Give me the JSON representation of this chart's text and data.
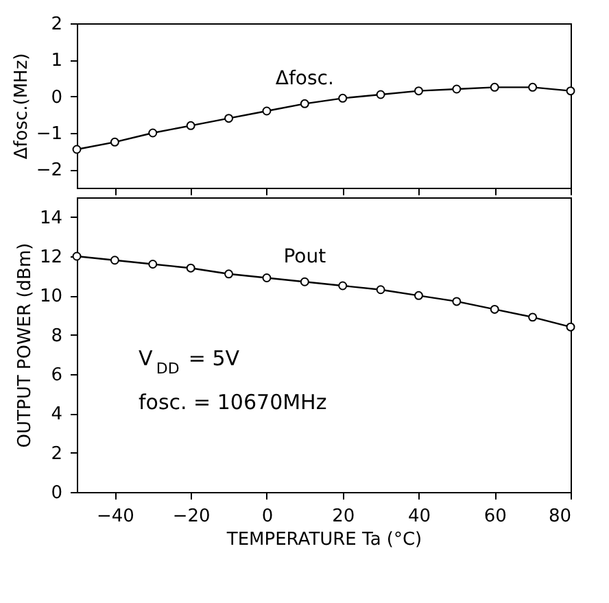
{
  "chart_data": [
    {
      "type": "line",
      "ylabel": "Δfosc.(MHz)",
      "x": [
        -50,
        -40,
        -30,
        -20,
        -10,
        0,
        10,
        20,
        30,
        40,
        50,
        60,
        70,
        80
      ],
      "xlim": [
        -50,
        80
      ],
      "xticks": [
        -40,
        -20,
        0,
        20,
        40,
        60,
        80
      ],
      "ylim": [
        -2.5,
        2
      ],
      "yticks": [
        -2,
        -1,
        0,
        1,
        2
      ],
      "tick_labels": "y",
      "marker": "circle",
      "line_style": "solid",
      "series": [
        {
          "name": "Δfosc.",
          "color": "#000000",
          "values": [
            -1.45,
            -1.25,
            -1.0,
            -0.8,
            -0.6,
            -0.4,
            -0.2,
            -0.05,
            0.05,
            0.15,
            0.2,
            0.25,
            0.25,
            0.15
          ]
        }
      ]
    },
    {
      "type": "line",
      "xlabel": "TEMPERATURE   Ta (°C)",
      "ylabel": "OUTPUT POWER (dBm)",
      "x": [
        -50,
        -40,
        -30,
        -20,
        -10,
        0,
        10,
        20,
        30,
        40,
        50,
        60,
        70,
        80
      ],
      "xlim": [
        -50,
        80
      ],
      "xticks": [
        -40,
        -20,
        0,
        20,
        40,
        60,
        80
      ],
      "ylim": [
        0,
        15
      ],
      "yticks": [
        0,
        2,
        4,
        6,
        8,
        10,
        12,
        14
      ],
      "marker": "circle",
      "line_style": "solid",
      "annotations": [
        "V$_{DD}$ = 5V",
        "fosc. = 10670MHz"
      ],
      "series": [
        {
          "name": "Pout",
          "color": "#000000",
          "values": [
            12.0,
            11.8,
            11.6,
            11.4,
            11.1,
            10.9,
            10.7,
            10.5,
            10.3,
            10.0,
            9.7,
            9.3,
            8.9,
            8.4
          ]
        }
      ]
    }
  ]
}
